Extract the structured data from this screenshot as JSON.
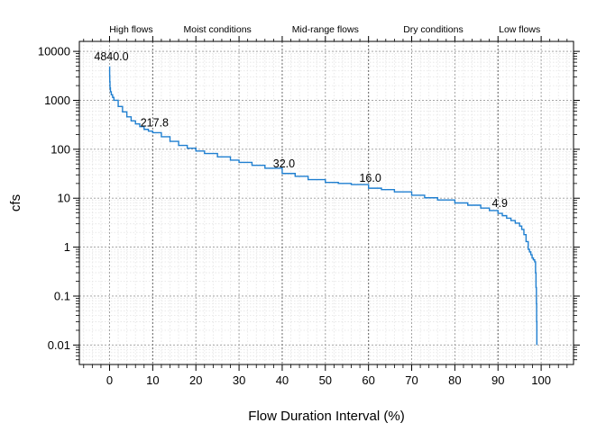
{
  "chart_data": {
    "type": "line",
    "xlabel": "Flow Duration Interval (%)",
    "ylabel": "cfs",
    "xlim": [
      -7,
      107.5
    ],
    "ylim": [
      0.004,
      16000
    ],
    "y_scale": "log",
    "grid": true,
    "series_color": "#1f7fd0",
    "x_ticks": [
      0,
      10,
      20,
      30,
      40,
      50,
      60,
      70,
      80,
      90,
      100
    ],
    "x_tick_labels": [
      "0",
      "10",
      "20",
      "30",
      "40",
      "50",
      "60",
      "70",
      "80",
      "90",
      "100"
    ],
    "y_ticks": [
      0.01,
      0.1,
      1,
      10,
      100,
      1000,
      10000
    ],
    "y_tick_labels": [
      "0.01",
      "0.1",
      "1",
      "10",
      "100",
      "1000",
      "10000"
    ],
    "zones": [
      {
        "label": "High flows",
        "center": 5
      },
      {
        "label": "Moist conditions",
        "center": 25
      },
      {
        "label": "Mid-range flows",
        "center": 50
      },
      {
        "label": "Dry conditions",
        "center": 75
      },
      {
        "label": "Low flows",
        "center": 95
      }
    ],
    "zone_boundaries": [
      10,
      40,
      60,
      90
    ],
    "annotations": [
      {
        "x": 0,
        "y": 4840.0,
        "text": "4840.0"
      },
      {
        "x": 10,
        "y": 217.8,
        "text": "217.8"
      },
      {
        "x": 40,
        "y": 32.0,
        "text": "32.0"
      },
      {
        "x": 60,
        "y": 16.0,
        "text": "16.0"
      },
      {
        "x": 90,
        "y": 4.9,
        "text": "4.9"
      }
    ],
    "series": [
      {
        "x": [
          0,
          0.02,
          0.05,
          0.1,
          0.2,
          0.4,
          0.7,
          1,
          2,
          3,
          4,
          5,
          6,
          7,
          8,
          9,
          10,
          12,
          14,
          16,
          18,
          20,
          22,
          25,
          28,
          30,
          33,
          36,
          40,
          43,
          46,
          50,
          53,
          56,
          60,
          63,
          66,
          70,
          73,
          76,
          80,
          83,
          86,
          88,
          90,
          91,
          92,
          93,
          94,
          95,
          95.5,
          96,
          96.5,
          97,
          97.3,
          97.6,
          97.9,
          98.2,
          98.5,
          98.7,
          98.8,
          98.9,
          98.95,
          99
        ],
        "y": [
          4840,
          3200,
          2400,
          1800,
          1500,
          1300,
          1150,
          1000,
          750,
          580,
          460,
          380,
          330,
          290,
          255,
          235,
          217.8,
          180,
          145,
          120,
          105,
          92,
          82,
          70,
          60,
          54,
          47,
          41,
          32,
          28,
          24,
          21,
          20,
          19,
          16,
          15,
          13.5,
          11.5,
          10.2,
          9.2,
          8,
          7.2,
          6.3,
          5.6,
          4.9,
          4.4,
          3.9,
          3.5,
          3.1,
          2.7,
          2.3,
          1.8,
          1.3,
          0.9,
          0.8,
          0.7,
          0.6,
          0.55,
          0.5,
          0.3,
          0.15,
          0.07,
          0.03,
          0.01
        ]
      }
    ]
  }
}
